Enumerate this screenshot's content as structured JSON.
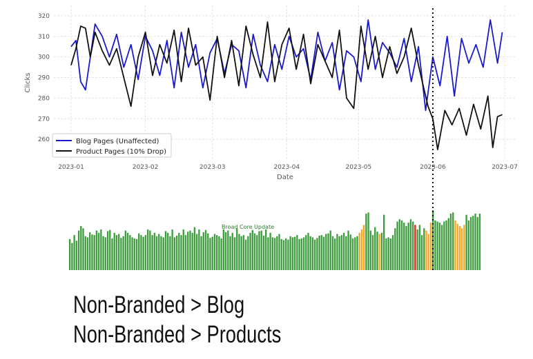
{
  "chart_data": [
    {
      "type": "line",
      "xlabel": "Date",
      "ylabel": "Clicks",
      "xlim": [
        "2023-01-01",
        "2023-07-01"
      ],
      "ylim": [
        250,
        325
      ],
      "x_ticks": [
        "2023-01",
        "2023-02",
        "2023-03",
        "2023-04",
        "2023-05",
        "2023-06",
        "2023-07"
      ],
      "y_ticks": [
        260,
        270,
        280,
        290,
        300,
        310,
        320
      ],
      "grid": true,
      "legend_placement": "lower-left",
      "vline": {
        "date": "2023-06-01",
        "style": "dotted"
      },
      "series": [
        {
          "name": "Blog Pages (Unaffected)",
          "color": "#1a1acc",
          "points": [
            [
              "2023-01-01",
              305
            ],
            [
              "2023-01-03",
              308
            ],
            [
              "2023-01-05",
              288
            ],
            [
              "2023-01-07",
              284
            ],
            [
              "2023-01-09",
              300
            ],
            [
              "2023-01-11",
              316
            ],
            [
              "2023-01-14",
              310
            ],
            [
              "2023-01-17",
              300
            ],
            [
              "2023-01-20",
              311
            ],
            [
              "2023-01-23",
              295
            ],
            [
              "2023-01-26",
              306
            ],
            [
              "2023-01-29",
              289
            ],
            [
              "2023-02-01",
              310
            ],
            [
              "2023-02-04",
              303
            ],
            [
              "2023-02-07",
              291
            ],
            [
              "2023-02-10",
              308
            ],
            [
              "2023-02-13",
              285
            ],
            [
              "2023-02-16",
              312
            ],
            [
              "2023-02-19",
              295
            ],
            [
              "2023-02-22",
              306
            ],
            [
              "2023-02-25",
              285
            ],
            [
              "2023-02-28",
              302
            ],
            [
              "2023-03-03",
              309
            ],
            [
              "2023-03-06",
              292
            ],
            [
              "2023-03-09",
              306
            ],
            [
              "2023-03-12",
              303
            ],
            [
              "2023-03-15",
              285
            ],
            [
              "2023-03-18",
              311
            ],
            [
              "2023-03-21",
              296
            ],
            [
              "2023-03-24",
              288
            ],
            [
              "2023-03-27",
              306
            ],
            [
              "2023-03-30",
              294
            ],
            [
              "2023-04-02",
              310
            ],
            [
              "2023-04-05",
              300
            ],
            [
              "2023-04-08",
              304
            ],
            [
              "2023-04-11",
              289
            ],
            [
              "2023-04-14",
              312
            ],
            [
              "2023-04-17",
              298
            ],
            [
              "2023-04-20",
              307
            ],
            [
              "2023-04-23",
              284
            ],
            [
              "2023-04-26",
              303
            ],
            [
              "2023-04-29",
              300
            ],
            [
              "2023-05-02",
              288
            ],
            [
              "2023-05-05",
              318
            ],
            [
              "2023-05-08",
              294
            ],
            [
              "2023-05-11",
              307
            ],
            [
              "2023-05-14",
              302
            ],
            [
              "2023-05-17",
              295
            ],
            [
              "2023-05-20",
              309
            ],
            [
              "2023-05-23",
              288
            ],
            [
              "2023-05-26",
              305
            ],
            [
              "2023-05-29",
              274
            ],
            [
              "2023-06-01",
              300
            ],
            [
              "2023-06-04",
              286
            ],
            [
              "2023-06-07",
              310
            ],
            [
              "2023-06-10",
              281
            ],
            [
              "2023-06-13",
              309
            ],
            [
              "2023-06-16",
              297
            ],
            [
              "2023-06-19",
              306
            ],
            [
              "2023-06-22",
              295
            ],
            [
              "2023-06-25",
              318
            ],
            [
              "2023-06-28",
              297
            ],
            [
              "2023-06-30",
              312
            ]
          ]
        },
        {
          "name": "Product Pages (10% Drop)",
          "color": "#111111",
          "points": [
            [
              "2023-01-01",
              296
            ],
            [
              "2023-01-03",
              304
            ],
            [
              "2023-01-05",
              315
            ],
            [
              "2023-01-07",
              314
            ],
            [
              "2023-01-09",
              300
            ],
            [
              "2023-01-11",
              312
            ],
            [
              "2023-01-14",
              303
            ],
            [
              "2023-01-17",
              296
            ],
            [
              "2023-01-20",
              304
            ],
            [
              "2023-01-23",
              290
            ],
            [
              "2023-01-26",
              276
            ],
            [
              "2023-01-29",
              300
            ],
            [
              "2023-02-01",
              312
            ],
            [
              "2023-02-04",
              291
            ],
            [
              "2023-02-07",
              306
            ],
            [
              "2023-02-10",
              297
            ],
            [
              "2023-02-13",
              313
            ],
            [
              "2023-02-16",
              288
            ],
            [
              "2023-02-19",
              314
            ],
            [
              "2023-02-22",
              296
            ],
            [
              "2023-02-25",
              300
            ],
            [
              "2023-02-28",
              279
            ],
            [
              "2023-03-03",
              310
            ],
            [
              "2023-03-06",
              290
            ],
            [
              "2023-03-09",
              308
            ],
            [
              "2023-03-12",
              286
            ],
            [
              "2023-03-15",
              315
            ],
            [
              "2023-03-18",
              301
            ],
            [
              "2023-03-21",
              290
            ],
            [
              "2023-03-24",
              317
            ],
            [
              "2023-03-27",
              288
            ],
            [
              "2023-03-30",
              306
            ],
            [
              "2023-04-02",
              314
            ],
            [
              "2023-04-05",
              294
            ],
            [
              "2023-04-08",
              311
            ],
            [
              "2023-04-11",
              287
            ],
            [
              "2023-04-14",
              306
            ],
            [
              "2023-04-17",
              298
            ],
            [
              "2023-04-20",
              290
            ],
            [
              "2023-04-23",
              313
            ],
            [
              "2023-04-26",
              280
            ],
            [
              "2023-04-29",
              275
            ],
            [
              "2023-05-02",
              315
            ],
            [
              "2023-05-05",
              294
            ],
            [
              "2023-05-08",
              310
            ],
            [
              "2023-05-11",
              290
            ],
            [
              "2023-05-14",
              305
            ],
            [
              "2023-05-17",
              292
            ],
            [
              "2023-05-20",
              300
            ],
            [
              "2023-05-23",
              314
            ],
            [
              "2023-05-26",
              296
            ],
            [
              "2023-05-28",
              286
            ],
            [
              "2023-05-30",
              276
            ],
            [
              "2023-06-01",
              270
            ],
            [
              "2023-06-03",
              255
            ],
            [
              "2023-06-06",
              274
            ],
            [
              "2023-06-09",
              267
            ],
            [
              "2023-06-12",
              275
            ],
            [
              "2023-06-15",
              262
            ],
            [
              "2023-06-18",
              277
            ],
            [
              "2023-06-21",
              265
            ],
            [
              "2023-06-24",
              281
            ],
            [
              "2023-06-26",
              256
            ],
            [
              "2023-06-28",
              271
            ],
            [
              "2023-06-30",
              272
            ]
          ]
        }
      ]
    },
    {
      "type": "bar",
      "annotation": "Broad Core Update",
      "color_normal": "#3d9c3d",
      "color_warning": "#f5a623",
      "color_event": "#e02020",
      "values": [
        0.55,
        0.48,
        0.62,
        0.52,
        0.7,
        0.78,
        0.74,
        0.6,
        0.58,
        0.67,
        0.63,
        0.62,
        0.7,
        0.66,
        0.72,
        0.6,
        0.58,
        0.69,
        0.71,
        0.56,
        0.66,
        0.62,
        0.64,
        0.57,
        0.6,
        0.7,
        0.66,
        0.62,
        0.58,
        0.56,
        0.55,
        0.65,
        0.62,
        0.59,
        0.62,
        0.72,
        0.7,
        0.62,
        0.66,
        0.6,
        0.64,
        0.6,
        0.58,
        0.69,
        0.66,
        0.6,
        0.72,
        0.58,
        0.61,
        0.66,
        0.62,
        0.72,
        0.62,
        0.68,
        0.7,
        0.66,
        0.76,
        0.64,
        0.72,
        0.6,
        0.67,
        0.71,
        0.65,
        0.57,
        0.59,
        0.64,
        0.62,
        0.6,
        0.56,
        0.72,
        0.67,
        0.7,
        0.6,
        0.66,
        0.58,
        0.74,
        0.64,
        0.6,
        0.62,
        0.54,
        0.6,
        0.66,
        0.71,
        0.65,
        0.62,
        0.69,
        0.7,
        0.61,
        0.72,
        0.58,
        0.66,
        0.58,
        0.57,
        0.6,
        0.64,
        0.55,
        0.53,
        0.56,
        0.54,
        0.6,
        0.58,
        0.59,
        0.62,
        0.55,
        0.56,
        0.58,
        0.62,
        0.66,
        0.6,
        0.58,
        0.54,
        0.57,
        0.61,
        0.62,
        0.59,
        0.64,
        0.65,
        0.7,
        0.6,
        0.56,
        0.64,
        0.6,
        0.62,
        0.66,
        0.6,
        0.7,
        0.63,
        0.56,
        0.58,
        0.6,
        0.66,
        0.72,
        0.8,
        1.0,
        1.02,
        0.7,
        0.62,
        0.76,
        0.68,
        0.64,
        0.66,
        0.98,
        0.56,
        0.58,
        0.56,
        0.62,
        0.74,
        0.86,
        0.9,
        0.88,
        0.84,
        0.78,
        0.84,
        0.9,
        0.86,
        0.8,
        0.72,
        0.8,
        0.62,
        0.74,
        0.7,
        0.64,
        0.84,
        1.06,
        0.88,
        0.86,
        0.84,
        0.8,
        0.86,
        0.88,
        0.92,
        1.0,
        1.02,
        0.88,
        0.82,
        0.78,
        0.74,
        0.8,
        0.98,
        0.88,
        0.94,
        0.96,
        1.0,
        0.94,
        1.0
      ],
      "warning_indices": [
        130,
        131,
        132,
        139,
        160,
        161,
        162,
        173,
        174,
        175,
        176,
        177
      ],
      "event_index": 155
    }
  ],
  "captions": [
    "Non-Branded > Blog",
    "Non-Branded > Products"
  ]
}
